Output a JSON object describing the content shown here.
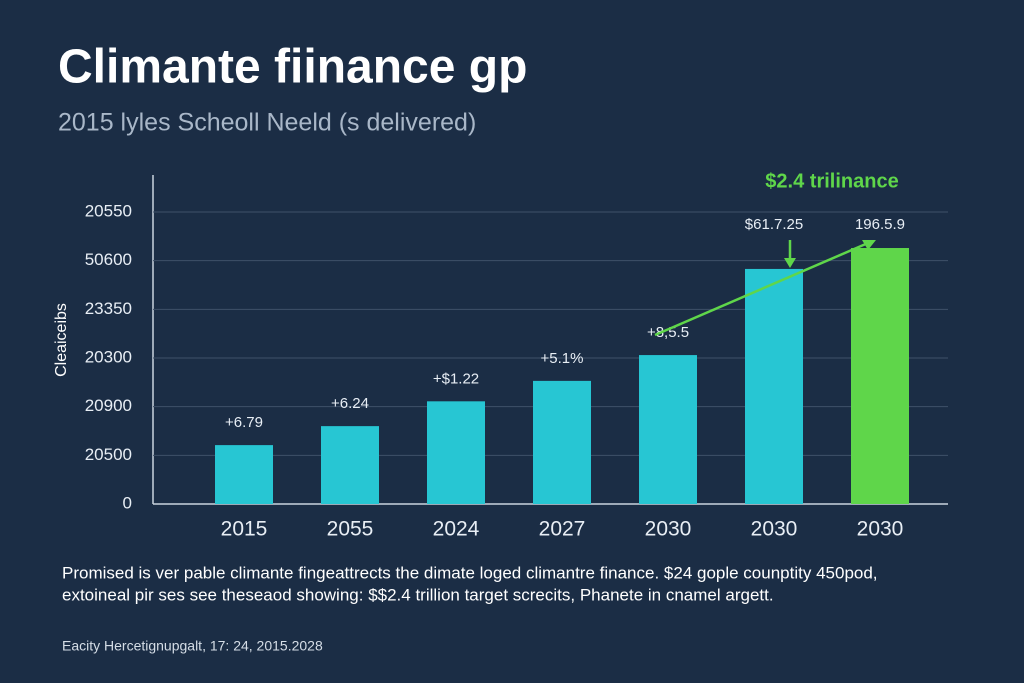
{
  "chart_data": {
    "type": "bar",
    "title": "Climante fiinance gp",
    "subtitle": "2015 lyles Scheoll Neeld (s delivered)",
    "y_label": "Cleaiceibs",
    "highlight": "$2.4 trilinance",
    "categories": [
      "2015",
      "2055",
      "2024",
      "2027",
      "2030",
      "2030",
      "2030"
    ],
    "values": [
      1.21,
      1.6,
      2.11,
      2.53,
      3.06,
      4.83,
      5.26
    ],
    "annotations": [
      "+6.79",
      "+6.24",
      "+$1.22",
      "+5.1%",
      "+8,5.5",
      "$61.7.25",
      "196.5.9"
    ],
    "colors": [
      "#27c6d3",
      "#27c6d3",
      "#27c6d3",
      "#27c6d3",
      "#27c6d3",
      "#27c6d3",
      "#5fd64a"
    ],
    "ylim": [
      0,
      6.2
    ],
    "yticks": [
      {
        "value": 0,
        "label": "0"
      },
      {
        "value": 1,
        "label": "20500"
      },
      {
        "value": 2,
        "label": "20900"
      },
      {
        "value": 3,
        "label": "20300"
      },
      {
        "value": 4,
        "label": "23350"
      },
      {
        "value": 5,
        "label": "50600"
      },
      {
        "value": 6,
        "label": "20550"
      }
    ],
    "grid": true,
    "footnote": [
      "Promised is ver pable climante fingeattrects the dimate loged climantre finance. $24 gople counptity 450pod,",
      "extoineal pir ses see theseaod showing: $$2.4 trillion target screcits, Phanete in cnamel argett."
    ],
    "source": "Eacity Hercetignupgalt, 17: 24, 2015.2028"
  }
}
